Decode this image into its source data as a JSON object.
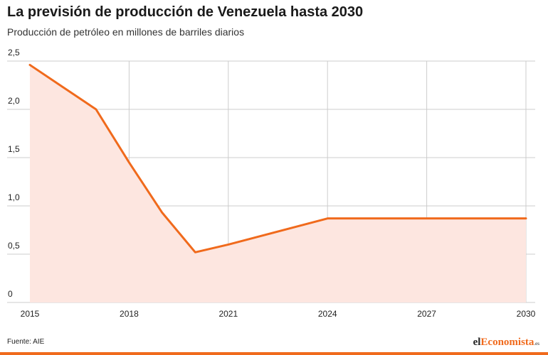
{
  "title": "La previsión de producción de Venezuela hasta 2030",
  "subtitle": "Producción de petróleo en millones de barriles diarios",
  "source": "Fuente: AIE",
  "logo": {
    "part1": "el",
    "accent": "Economista",
    "suffix": ".es"
  },
  "colors": {
    "line": "#f06a1c",
    "area": "#fde6e0",
    "grid": "#cccccc",
    "bar": "#f06a1c"
  },
  "chart_data": {
    "type": "area",
    "x": [
      2015,
      2016,
      2017,
      2018,
      2019,
      2020,
      2021,
      2022,
      2023,
      2024,
      2025,
      2026,
      2027,
      2028,
      2029,
      2030
    ],
    "series": [
      {
        "values": [
          2.46,
          2.23,
          2.0,
          1.45,
          0.93,
          0.52,
          0.6,
          0.69,
          0.78,
          0.87,
          0.87,
          0.87,
          0.87,
          0.87,
          0.87,
          0.87
        ]
      }
    ],
    "xticks": [
      2015,
      2018,
      2021,
      2024,
      2027,
      2030
    ],
    "yticks": [
      {
        "value": 0,
        "label": "0"
      },
      {
        "value": 0.5,
        "label": "0,5"
      },
      {
        "value": 1,
        "label": "1,0"
      },
      {
        "value": 1.5,
        "label": "1,5"
      },
      {
        "value": 2,
        "label": "2,0"
      },
      {
        "value": 2.5,
        "label": "2,5"
      }
    ],
    "xlim": [
      2015,
      2030
    ],
    "ylim": [
      0,
      2.5
    ],
    "grid": true
  }
}
